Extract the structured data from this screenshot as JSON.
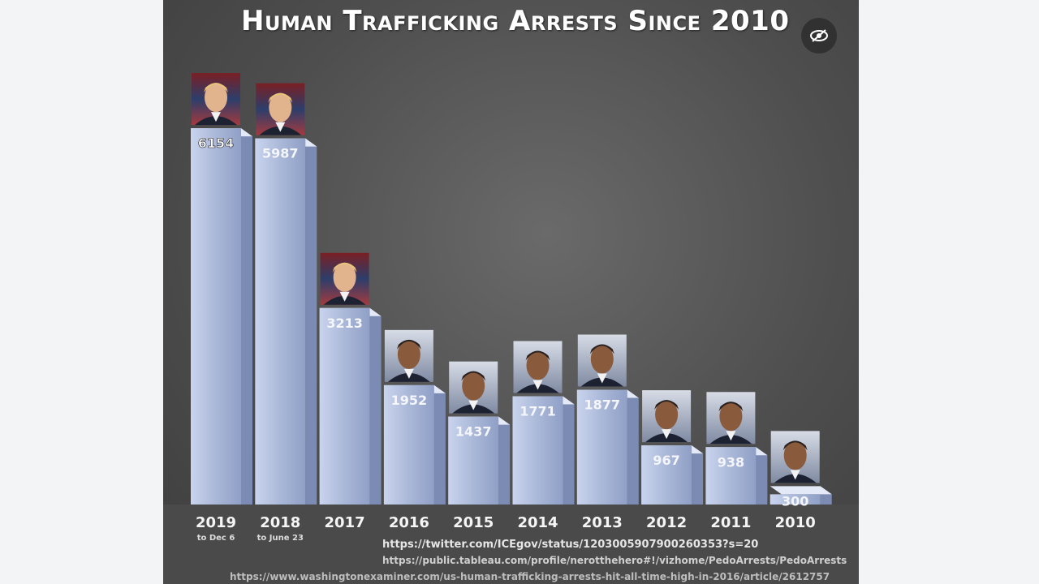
{
  "chart_data": {
    "type": "bar",
    "title": "Human Trafficking Arrests Since 2010",
    "categories": [
      "2019",
      "2018",
      "2017",
      "2016",
      "2015",
      "2014",
      "2013",
      "2012",
      "2011",
      "2010"
    ],
    "category_notes": [
      "to Dec 6",
      "to June 23",
      "",
      "",
      "",
      "",
      "",
      "",
      "",
      ""
    ],
    "values": [
      6154,
      5987,
      3213,
      1952,
      1437,
      1771,
      1877,
      967,
      938,
      300
    ],
    "portraits": [
      "trump",
      "trump",
      "trump",
      "obama",
      "obama",
      "obama",
      "obama",
      "obama",
      "obama",
      "obama"
    ],
    "ylim": [
      0,
      6500
    ],
    "grid": false,
    "bar_color": "#aab8d8"
  },
  "sources": [
    "https://twitter.com/ICEgov/status/1203005907900260353?s=20",
    "https://public.tableau.com/profile/nerotthehero#!/vizhome/PedoArrests/PedoArrests",
    "https://www.washingtonexaminer.com/us-human-trafficking-arrests-hit-all-time-high-in-2016/article/2612757"
  ],
  "icons": {
    "overlay": "eye-slash-icon"
  }
}
